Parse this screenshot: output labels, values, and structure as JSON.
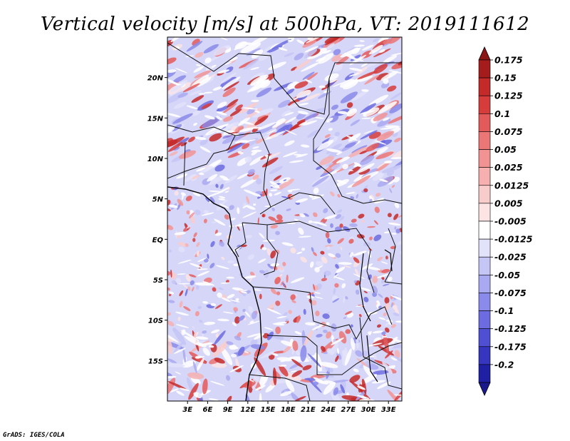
{
  "title": "Vertical velocity [m/s] at 500hPa, VT: 2019111612",
  "credit": "GrADS: IGES/COLA",
  "map": {
    "lon_range": [
      0,
      35
    ],
    "lat_range": [
      -20,
      25
    ],
    "lat_ticks": [
      {
        "label": "20N",
        "lat": 20
      },
      {
        "label": "15N",
        "lat": 15
      },
      {
        "label": "10N",
        "lat": 10
      },
      {
        "label": "5N",
        "lat": 5
      },
      {
        "label": "EQ",
        "lat": 0
      },
      {
        "label": "5S",
        "lat": -5
      },
      {
        "label": "10S",
        "lat": -10
      },
      {
        "label": "15S",
        "lat": -15
      }
    ],
    "lon_ticks": [
      {
        "label": "3E",
        "lon": 3
      },
      {
        "label": "6E",
        "lon": 6
      },
      {
        "label": "9E",
        "lon": 9
      },
      {
        "label": "12E",
        "lon": 12
      },
      {
        "label": "15E",
        "lon": 15
      },
      {
        "label": "18E",
        "lon": 18
      },
      {
        "label": "21E",
        "lon": 21
      },
      {
        "label": "24E",
        "lon": 24
      },
      {
        "label": "27E",
        "lon": 27
      },
      {
        "label": "30E",
        "lon": 30
      },
      {
        "label": "33E",
        "lon": 33
      }
    ]
  },
  "colorbar": {
    "levels": [
      {
        "label": "0.175",
        "color": "#a51c1c"
      },
      {
        "label": "0.15",
        "color": "#c42a2a"
      },
      {
        "label": "0.125",
        "color": "#d63c3c"
      },
      {
        "label": "0.1",
        "color": "#e35a5a"
      },
      {
        "label": "0.075",
        "color": "#eb7676"
      },
      {
        "label": "0.05",
        "color": "#f29393"
      },
      {
        "label": "0.025",
        "color": "#f6b0b0"
      },
      {
        "label": "0.0125",
        "color": "#f9cccc"
      },
      {
        "label": "0.005",
        "color": "#fce4e4"
      },
      {
        "label": "-0.005",
        "color": "#ffffff"
      },
      {
        "label": "-0.0125",
        "color": "#e2e2fb"
      },
      {
        "label": "-0.025",
        "color": "#c6c6f6"
      },
      {
        "label": "-0.05",
        "color": "#a9a9f1"
      },
      {
        "label": "-0.075",
        "color": "#8a8aea"
      },
      {
        "label": "-0.1",
        "color": "#6c6ce0"
      },
      {
        "label": "-0.125",
        "color": "#4f4fd4"
      },
      {
        "label": "-0.175",
        "color": "#3535c0"
      },
      {
        "label": "-0.2",
        "color": "#2020a5"
      }
    ],
    "over_color": "#8c1616",
    "under_color": "#19198c"
  }
}
